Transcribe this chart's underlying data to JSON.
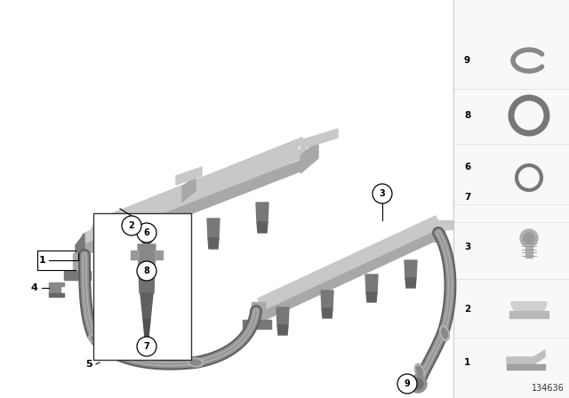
{
  "bg_color": "#ffffff",
  "part_color": "#a8a8a8",
  "light_part": "#c8c8c8",
  "dark_part": "#787878",
  "diagram_number": "134636"
}
